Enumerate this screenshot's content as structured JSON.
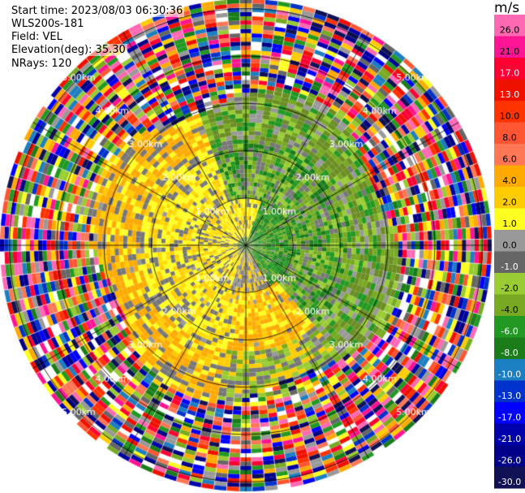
{
  "header": {
    "start_time": "Start time: 2023/08/03 06:30:36",
    "instrument": "WLS200s-181",
    "field": "Field: VEL",
    "elevation": "Elevation(deg): 35.30",
    "nrays": "NRays: 120"
  },
  "chart_data": {
    "type": "heatmap",
    "projection": "polar PPI",
    "field": "VEL",
    "units": "m/s",
    "nrays": 120,
    "elevation_deg": 35.3,
    "range_ring_labels": [
      "1.00km",
      "2.00km",
      "3.00km",
      "4.00km",
      "5.00km"
    ],
    "range_rings_km": [
      1,
      2,
      3,
      4,
      5
    ],
    "max_range_km": 5.2,
    "grid_lines_azimuth_deg": [
      0,
      30,
      60,
      90,
      120,
      150,
      180,
      210,
      240,
      270,
      300,
      330
    ],
    "colorbar": {
      "label": "m/s",
      "range": [
        -30,
        30
      ],
      "tick_labels": [
        "26.0",
        "21.0",
        "17.0",
        "13.0",
        "10.0",
        "8.0",
        "6.0",
        "4.0",
        "2.0",
        "1.0",
        "0.0",
        "-1.0",
        "-2.0",
        "-4.0",
        "-6.0",
        "-8.0",
        "-10.0",
        "-13.0",
        "-17.0",
        "-21.0",
        "-26.0",
        "-30.0"
      ],
      "colors": [
        "#ff69b4",
        "#ff1493",
        "#ff0033",
        "#ee1100",
        "#ff3300",
        "#ff5533",
        "#ff7755",
        "#ffaa00",
        "#ffcc00",
        "#ffff22",
        "#999999",
        "#666666",
        "#99cc33",
        "#77aa22",
        "#229922",
        "#1a7d1a",
        "#1c7fc1",
        "#0033cc",
        "#0000ff",
        "#0000aa",
        "#000088",
        "#111155"
      ]
    },
    "pattern": {
      "inner_region": "near-zero velocities (yellow/orange positive, grey/green negative) within ~3 km",
      "outer_region": "noisy, all-colour speckle beyond ~3 km"
    }
  }
}
